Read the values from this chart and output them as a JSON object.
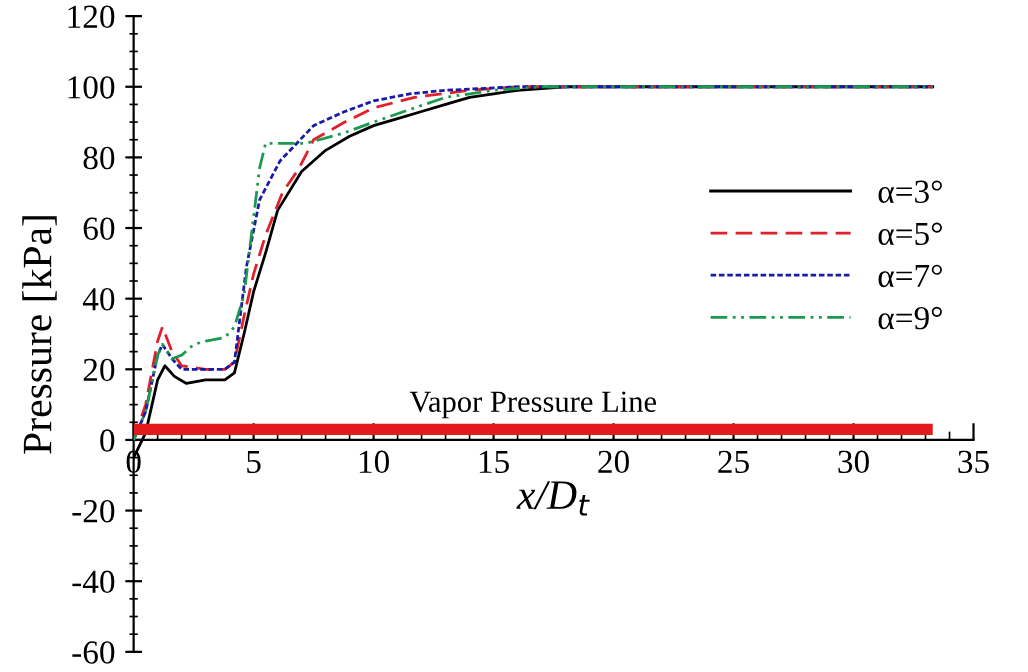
{
  "chart_data": {
    "type": "line",
    "xlabel": "x/D$_{t}$",
    "ylabel": "Pressure [kPa]",
    "xlim": [
      0,
      35
    ],
    "xticks": [
      0,
      5,
      10,
      15,
      20,
      25,
      30,
      35
    ],
    "ylim": [
      -60,
      120
    ],
    "yticks": [
      -60,
      -40,
      -20,
      0,
      20,
      40,
      60,
      80,
      100,
      120
    ],
    "grid": false,
    "legend": "right",
    "series": [
      {
        "name": "α=3°",
        "color": "#000000",
        "line_style": "solid",
        "x": [
          0,
          0.5,
          1,
          1.3,
          1.7,
          2.2,
          3,
          3.8,
          4.2,
          4.6,
          5,
          5.5,
          6,
          7,
          8,
          9,
          10,
          11,
          12,
          13,
          14,
          15,
          16,
          18,
          20,
          25,
          30,
          33.3
        ],
        "values": [
          -5,
          2,
          17,
          21,
          18,
          16,
          17,
          17,
          19,
          30,
          42,
          53,
          65,
          76,
          82,
          86,
          89,
          91,
          93,
          95,
          97,
          98,
          99,
          100,
          100,
          100,
          100,
          100
        ]
      },
      {
        "name": "α=5°",
        "color": "#e0202a",
        "line_style": "dashed",
        "x": [
          0,
          0.5,
          1,
          1.2,
          1.6,
          2,
          3,
          3.8,
          4.2,
          4.6,
          5,
          5.5,
          6.2,
          6.9,
          7.5,
          8.8,
          10,
          11.7,
          14,
          16,
          20,
          25,
          30,
          33.3
        ],
        "values": [
          0,
          10,
          28,
          32,
          25,
          21,
          20,
          20,
          22,
          35,
          47,
          58,
          70,
          77,
          85,
          90,
          94,
          97,
          99,
          100,
          100,
          100,
          100,
          100
        ]
      },
      {
        "name": "α=7°",
        "color": "#1a1aa8",
        "line_style": "dotted",
        "x": [
          0,
          0.5,
          1,
          1.2,
          1.6,
          2,
          3,
          3.8,
          4.2,
          4.7,
          5.25,
          6.1,
          7.5,
          8.8,
          10,
          11.5,
          13,
          16,
          20,
          25,
          30,
          33.3
        ],
        "values": [
          0,
          8,
          24,
          27,
          23,
          20,
          20,
          20,
          22,
          49,
          68,
          79,
          89,
          93,
          96,
          98,
          99,
          100,
          100,
          100,
          100,
          100
        ]
      },
      {
        "name": "α=9°",
        "color": "#1a9a50",
        "line_style": "dashdot",
        "x": [
          0,
          0.5,
          1,
          1.2,
          1.6,
          2,
          2.5,
          3,
          3.8,
          4.2,
          4.6,
          5.25,
          5.5,
          7.2,
          8.8,
          10,
          11.7,
          13,
          15,
          17,
          20,
          25,
          30,
          33.3
        ],
        "values": [
          0,
          8,
          24,
          27,
          23,
          24,
          27,
          28,
          29,
          32,
          41,
          77,
          84,
          84,
          87,
          90,
          94,
          97,
          99,
          100,
          100,
          100,
          100,
          100
        ]
      }
    ],
    "ref_lines": [
      {
        "axis": "y",
        "value": 3,
        "label": "Vapor Pressure Line",
        "color": "#e31a1c",
        "line_style": "solid"
      }
    ]
  }
}
